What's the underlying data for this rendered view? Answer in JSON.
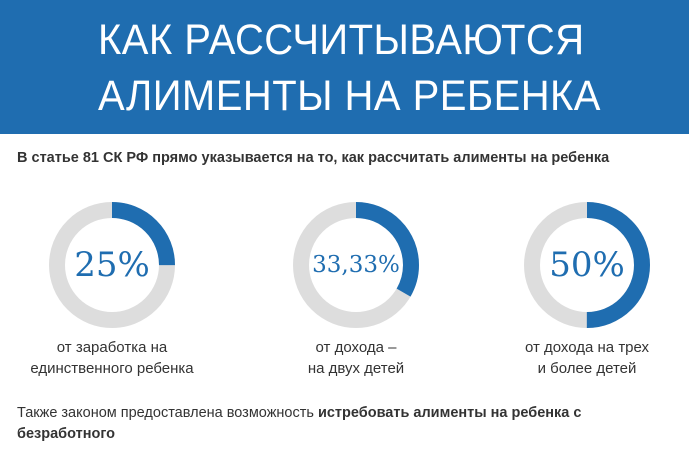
{
  "header": {
    "title_line1": "КАК РАССЧИТЫВАЮТСЯ",
    "title_line2": "АЛИМЕНТЫ НА РЕБЕНКА"
  },
  "intro": "В статье 81 СК РФ прямо указывается на то, как рассчитать алименты на ребенка",
  "stats": [
    {
      "percent_label": "25%",
      "fraction": 0.25,
      "caption_line1": "от заработка на",
      "caption_line2": "единственного ребенка"
    },
    {
      "percent_label": "33,33%",
      "fraction": 0.3333,
      "caption_line1": "от дохода –",
      "caption_line2": "на двух детей"
    },
    {
      "percent_label": "50%",
      "fraction": 0.5,
      "caption_line1": "от дохода на трех",
      "caption_line2": "и более детей"
    }
  ],
  "footer": {
    "text_regular": "Также законом предоставлена возможность ",
    "text_bold": "истребовать алименты на ребенка с безработного"
  },
  "colors": {
    "accent": "#1f6db0",
    "track": "#dddddd"
  }
}
